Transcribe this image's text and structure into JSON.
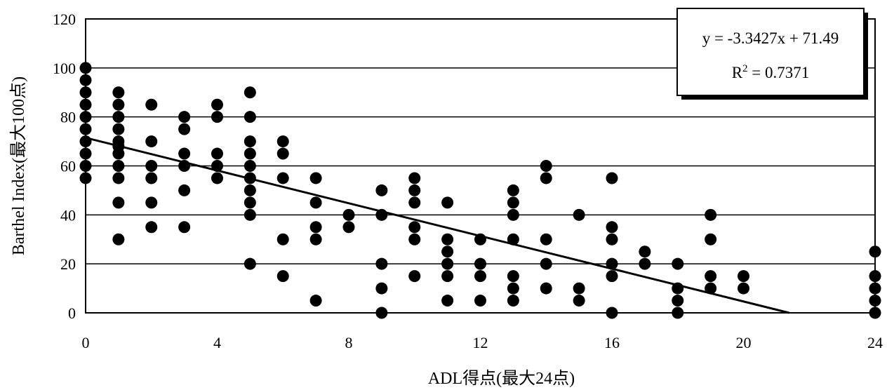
{
  "chart_data": {
    "type": "scatter",
    "xlabel": "ADL得点(最大24点)",
    "ylabel": "Barthel Index(最大100点)",
    "xlim": [
      0,
      24
    ],
    "ylim": [
      0,
      120
    ],
    "x_ticks": [
      0,
      4,
      8,
      12,
      16,
      20,
      24
    ],
    "y_ticks": [
      0,
      20,
      40,
      60,
      80,
      100,
      120
    ],
    "grid": "horizontal",
    "legend": "none",
    "marker_color": "#000000",
    "points": [
      [
        0,
        100
      ],
      [
        0,
        95
      ],
      [
        0,
        90
      ],
      [
        0,
        85
      ],
      [
        0,
        80
      ],
      [
        0,
        75
      ],
      [
        0,
        70
      ],
      [
        0,
        65
      ],
      [
        0,
        60
      ],
      [
        0,
        55
      ],
      [
        1,
        90
      ],
      [
        1,
        85
      ],
      [
        1,
        80
      ],
      [
        1,
        75
      ],
      [
        1,
        70
      ],
      [
        1,
        68
      ],
      [
        1,
        65
      ],
      [
        1,
        60
      ],
      [
        1,
        55
      ],
      [
        1,
        45
      ],
      [
        1,
        30
      ],
      [
        2,
        85
      ],
      [
        2,
        70
      ],
      [
        2,
        60
      ],
      [
        2,
        55
      ],
      [
        2,
        45
      ],
      [
        2,
        35
      ],
      [
        3,
        80
      ],
      [
        3,
        75
      ],
      [
        3,
        65
      ],
      [
        3,
        60
      ],
      [
        3,
        50
      ],
      [
        3,
        35
      ],
      [
        4,
        85
      ],
      [
        4,
        80
      ],
      [
        4,
        65
      ],
      [
        4,
        60
      ],
      [
        4,
        55
      ],
      [
        5,
        90
      ],
      [
        5,
        80
      ],
      [
        5,
        70
      ],
      [
        5,
        65
      ],
      [
        5,
        60
      ],
      [
        5,
        55
      ],
      [
        5,
        50
      ],
      [
        5,
        45
      ],
      [
        5,
        40
      ],
      [
        5,
        20
      ],
      [
        6,
        70
      ],
      [
        6,
        65
      ],
      [
        6,
        55
      ],
      [
        6,
        30
      ],
      [
        6,
        15
      ],
      [
        7,
        55
      ],
      [
        7,
        45
      ],
      [
        7,
        35
      ],
      [
        7,
        30
      ],
      [
        7,
        5
      ],
      [
        8,
        40
      ],
      [
        8,
        35
      ],
      [
        9,
        50
      ],
      [
        9,
        40
      ],
      [
        9,
        20
      ],
      [
        9,
        10
      ],
      [
        9,
        0
      ],
      [
        10,
        55
      ],
      [
        10,
        50
      ],
      [
        10,
        45
      ],
      [
        10,
        35
      ],
      [
        10,
        30
      ],
      [
        10,
        15
      ],
      [
        11,
        45
      ],
      [
        11,
        30
      ],
      [
        11,
        25
      ],
      [
        11,
        20
      ],
      [
        11,
        15
      ],
      [
        11,
        5
      ],
      [
        12,
        30
      ],
      [
        12,
        20
      ],
      [
        12,
        15
      ],
      [
        12,
        5
      ],
      [
        13,
        50
      ],
      [
        13,
        45
      ],
      [
        13,
        40
      ],
      [
        13,
        30
      ],
      [
        13,
        15
      ],
      [
        13,
        10
      ],
      [
        13,
        5
      ],
      [
        14,
        60
      ],
      [
        14,
        55
      ],
      [
        14,
        30
      ],
      [
        14,
        20
      ],
      [
        14,
        10
      ],
      [
        15,
        40
      ],
      [
        15,
        10
      ],
      [
        15,
        5
      ],
      [
        16,
        55
      ],
      [
        16,
        35
      ],
      [
        16,
        30
      ],
      [
        16,
        20
      ],
      [
        16,
        15
      ],
      [
        16,
        0
      ],
      [
        17,
        25
      ],
      [
        17,
        20
      ],
      [
        18,
        20
      ],
      [
        18,
        10
      ],
      [
        18,
        5
      ],
      [
        18,
        0
      ],
      [
        19,
        40
      ],
      [
        19,
        30
      ],
      [
        19,
        15
      ],
      [
        19,
        10
      ],
      [
        20,
        15
      ],
      [
        20,
        10
      ],
      [
        24,
        25
      ],
      [
        24,
        15
      ],
      [
        24,
        10
      ],
      [
        24,
        5
      ],
      [
        24,
        0
      ]
    ],
    "trendline": {
      "slope": -3.3427,
      "intercept": 71.49,
      "x_range": [
        0,
        24
      ],
      "color": "#000000"
    },
    "annotations": {
      "equation": "y = -3.3427x + 71.49",
      "r2_label": "R",
      "r2_sup": "2",
      "r2_value": " = 0.7371"
    }
  }
}
